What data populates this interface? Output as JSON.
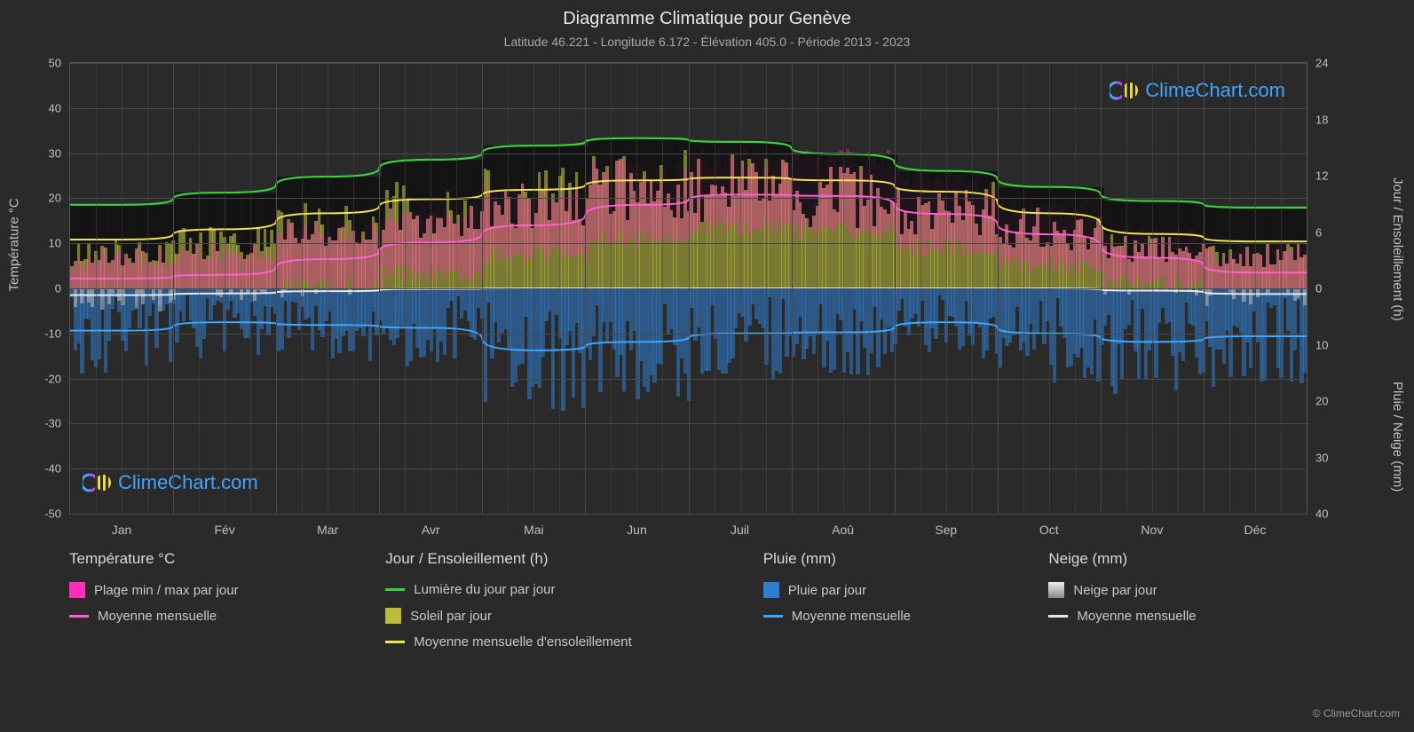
{
  "title": "Diagramme Climatique pour Genève",
  "subtitle": "Latitude 46.221 - Longitude 6.172 - Élévation 405.0 - Période 2013 - 2023",
  "watermark_text": "ClimeChart.com",
  "copyright": "© ClimeChart.com",
  "axes": {
    "left_title": "Température °C",
    "right_top_title": "Jour / Ensoleillement (h)",
    "right_bottom_title": "Pluie / Neige (mm)",
    "left_ticks": [
      50,
      40,
      30,
      20,
      10,
      0,
      -10,
      -20,
      -30,
      -40,
      -50
    ],
    "right_top_ticks": [
      24,
      18,
      12,
      6,
      0
    ],
    "right_bottom_ticks": [
      0,
      10,
      20,
      30,
      40
    ],
    "months": [
      "Jan",
      "Fév",
      "Mar",
      "Avr",
      "Mai",
      "Jun",
      "Juil",
      "Aoû",
      "Sep",
      "Oct",
      "Nov",
      "Déc"
    ]
  },
  "colors": {
    "bg": "#2a2a2a",
    "grid": "#4a4a4a",
    "daylight_line": "#3bd23b",
    "sunshine_line": "#f0e450",
    "temp_line": "#ff5fd0",
    "rain_line": "#3fa6ff",
    "snow_line": "#e8e8e8",
    "temp_range_fill": "#ff2fb8",
    "sun_bar": "#bdbb3b",
    "rain_bar": "#2f7dd0",
    "snow_bar": "#b8b8b8"
  },
  "series": {
    "daylight_h": [
      8.9,
      10.2,
      11.9,
      13.7,
      15.2,
      16.0,
      15.6,
      14.3,
      12.5,
      10.8,
      9.3,
      8.6
    ],
    "sunshine_mean_h": [
      5.2,
      6.3,
      8.0,
      9.5,
      10.5,
      11.5,
      11.8,
      11.5,
      10.3,
      8.0,
      5.8,
      5.0
    ],
    "temp_mean_c": [
      2.2,
      3.0,
      6.5,
      10.2,
      14.0,
      18.5,
      20.8,
      20.5,
      16.5,
      12.0,
      6.8,
      3.5
    ],
    "temp_min_c": [
      -3.0,
      -2.5,
      0.5,
      3.5,
      7.5,
      11.0,
      13.5,
      13.0,
      9.0,
      5.0,
      1.0,
      -2.0
    ],
    "temp_max_c": [
      7.0,
      8.5,
      13.0,
      17.0,
      21.5,
      26.0,
      29.0,
      28.5,
      23.5,
      18.0,
      11.5,
      8.0
    ],
    "sun_day_frac": [
      0.45,
      0.5,
      0.6,
      0.65,
      0.68,
      0.72,
      0.75,
      0.74,
      0.7,
      0.62,
      0.48,
      0.44
    ],
    "rain_mean_mm": [
      7.5,
      6.0,
      6.5,
      7.0,
      11.0,
      9.5,
      8.0,
      7.8,
      6.0,
      8.0,
      9.5,
      8.5
    ],
    "snow_mean_mm": [
      1.2,
      0.9,
      0.5,
      0.1,
      0.0,
      0.0,
      0.0,
      0.0,
      0.0,
      0.0,
      0.4,
      1.0
    ]
  },
  "legend": {
    "col1_header": "Température °C",
    "col1_range": "Plage min / max par jour",
    "col1_mean": "Moyenne mensuelle",
    "col2_header": "Jour / Ensoleillement (h)",
    "col2_daylight": "Lumière du jour par jour",
    "col2_sun": "Soleil par jour",
    "col2_sunmean": "Moyenne mensuelle d'ensoleillement",
    "col3_header": "Pluie (mm)",
    "col3_rainday": "Pluie par jour",
    "col3_rainmean": "Moyenne mensuelle",
    "col4_header": "Neige (mm)",
    "col4_snowday": "Neige par jour",
    "col4_snowmean": "Moyenne mensuelle"
  }
}
